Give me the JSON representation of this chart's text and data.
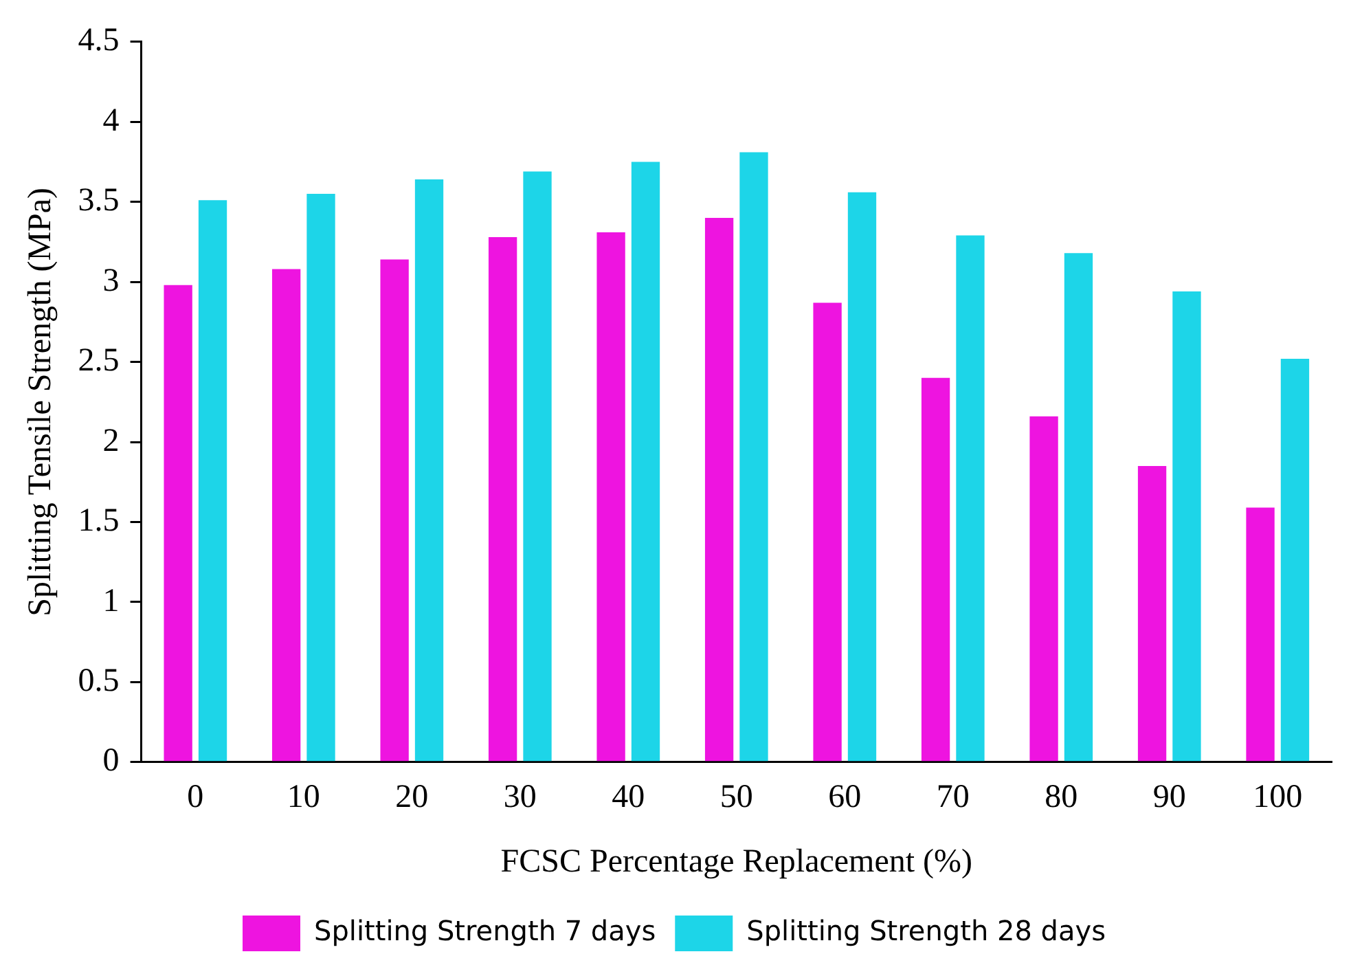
{
  "chart_data": {
    "type": "bar",
    "xlabel": "FCSC Percentage Replacement (%)",
    "ylabel": "Splitting Tensile Strength (MPa)",
    "categories": [
      "0",
      "10",
      "20",
      "30",
      "40",
      "50",
      "60",
      "70",
      "80",
      "90",
      "100"
    ],
    "series": [
      {
        "name": "Splitting Strength 7 days",
        "color": "#ee14e0",
        "values": [
          2.98,
          3.08,
          3.14,
          3.28,
          3.31,
          3.4,
          2.87,
          2.4,
          2.16,
          1.85,
          1.59
        ]
      },
      {
        "name": "Splitting Strength 28 days",
        "color": "#1dd5e8",
        "values": [
          3.51,
          3.55,
          3.64,
          3.69,
          3.75,
          3.81,
          3.56,
          3.29,
          3.18,
          2.94,
          2.52
        ]
      }
    ],
    "ylim": [
      0,
      4.5
    ],
    "yticks": [
      0,
      0.5,
      1,
      1.5,
      2,
      2.5,
      3,
      3.5,
      4,
      4.5
    ],
    "grid": false,
    "legend": "bottom"
  }
}
